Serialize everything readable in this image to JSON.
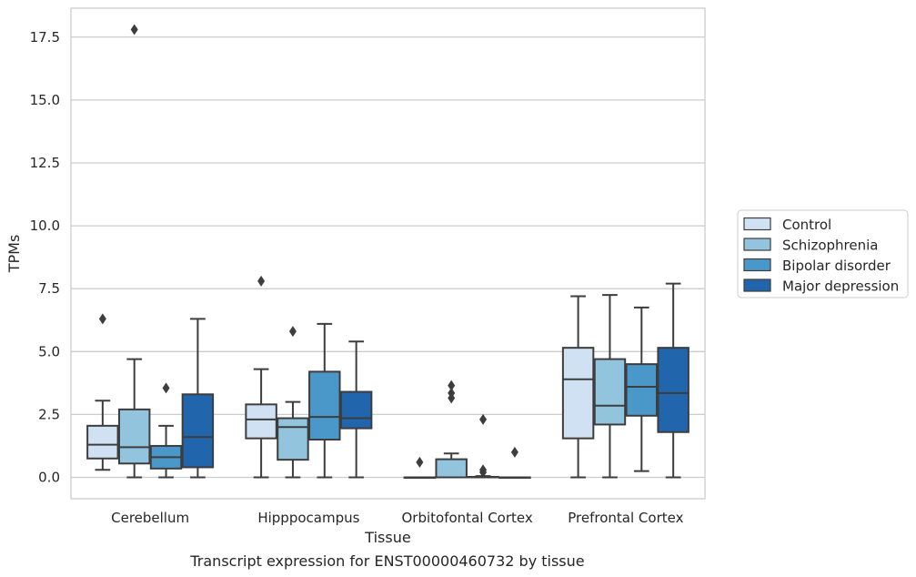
{
  "chart_data": {
    "type": "box",
    "title": "",
    "caption": "Transcript expression for ENST00000460732 by tissue",
    "xlabel": "Tissue",
    "ylabel": "TPMs",
    "ylim": [
      -0.85,
      18.65
    ],
    "yticks": [
      0.0,
      2.5,
      5.0,
      7.5,
      10.0,
      12.5,
      15.0,
      17.5
    ],
    "ytick_labels": [
      "0.0",
      "2.5",
      "5.0",
      "7.5",
      "10.0",
      "12.5",
      "15.0",
      "17.5"
    ],
    "grid": "horizontal",
    "legend_position": "right",
    "categories": [
      "Cerebellum",
      "Hipppocampus",
      "Orbitofontal Cortex",
      "Prefrontal Cortex"
    ],
    "series": [
      {
        "name": "Control",
        "color": "#cfe1f2",
        "boxes": [
          {
            "whislo": 0.3,
            "q1": 0.75,
            "med": 1.3,
            "q3": 2.05,
            "whishi": 3.05,
            "fliers": [
              6.3
            ]
          },
          {
            "whislo": 0.0,
            "q1": 1.55,
            "med": 2.3,
            "q3": 2.9,
            "whishi": 4.3,
            "fliers": [
              7.8
            ]
          },
          {
            "whislo": 0.0,
            "q1": 0.0,
            "med": 0.0,
            "q3": 0.0,
            "whishi": 0.0,
            "fliers": [
              0.6
            ]
          },
          {
            "whislo": 0.0,
            "q1": 1.55,
            "med": 3.9,
            "q3": 5.15,
            "whishi": 7.2,
            "fliers": []
          }
        ]
      },
      {
        "name": "Schizophrenia",
        "color": "#93c4de",
        "boxes": [
          {
            "whislo": 0.0,
            "q1": 0.55,
            "med": 1.2,
            "q3": 2.7,
            "whishi": 4.7,
            "fliers": [
              17.8
            ]
          },
          {
            "whislo": 0.0,
            "q1": 0.7,
            "med": 2.0,
            "q3": 2.35,
            "whishi": 3.0,
            "fliers": [
              5.8
            ]
          },
          {
            "whislo": 0.0,
            "q1": 0.0,
            "med": 0.0,
            "q3": 0.72,
            "whishi": 0.95,
            "fliers": [
              3.15,
              3.35,
              3.65
            ]
          },
          {
            "whislo": 0.0,
            "q1": 2.1,
            "med": 2.85,
            "q3": 4.7,
            "whishi": 7.25,
            "fliers": []
          }
        ]
      },
      {
        "name": "Bipolar disorder",
        "color": "#4a98c9",
        "boxes": [
          {
            "whislo": 0.0,
            "q1": 0.35,
            "med": 0.8,
            "q3": 1.25,
            "whishi": 2.05,
            "fliers": [
              3.55
            ]
          },
          {
            "whislo": 0.0,
            "q1": 1.5,
            "med": 2.4,
            "q3": 4.2,
            "whishi": 6.1,
            "fliers": []
          },
          {
            "whislo": 0.0,
            "q1": 0.0,
            "med": 0.0,
            "q3": 0.02,
            "whishi": 0.05,
            "fliers": [
              0.2,
              0.3,
              2.3
            ]
          },
          {
            "whislo": 0.25,
            "q1": 2.45,
            "med": 3.6,
            "q3": 4.5,
            "whishi": 6.75,
            "fliers": []
          }
        ]
      },
      {
        "name": "Major depression",
        "color": "#2166ac",
        "boxes": [
          {
            "whislo": 0.0,
            "q1": 0.4,
            "med": 1.6,
            "q3": 3.3,
            "whishi": 6.3,
            "fliers": []
          },
          {
            "whislo": 0.0,
            "q1": 1.95,
            "med": 2.35,
            "q3": 3.4,
            "whishi": 5.4,
            "fliers": []
          },
          {
            "whislo": 0.0,
            "q1": 0.0,
            "med": 0.0,
            "q3": 0.0,
            "whishi": 0.0,
            "fliers": [
              1.0
            ]
          },
          {
            "whislo": 0.0,
            "q1": 1.8,
            "med": 3.35,
            "q3": 5.15,
            "whishi": 7.7,
            "fliers": []
          }
        ]
      }
    ]
  }
}
